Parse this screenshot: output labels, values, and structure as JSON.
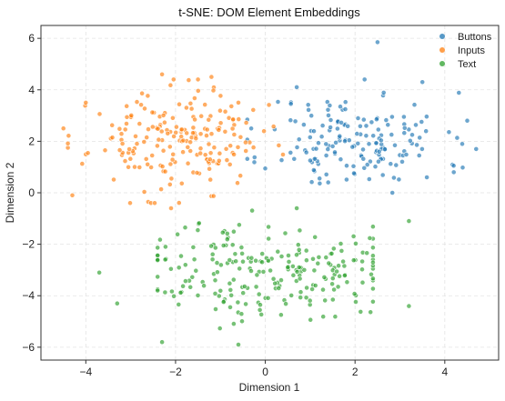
{
  "chart_data": {
    "type": "scatter",
    "title": "t-SNE: DOM Element Embeddings",
    "xlabel": "Dimension 1",
    "ylabel": "Dimension 2",
    "xlim": [
      -5,
      5.2
    ],
    "ylim": [
      -6.5,
      6.5
    ],
    "xticks": [
      -4,
      -2,
      0,
      2,
      4
    ],
    "yticks": [
      -6,
      -4,
      -2,
      0,
      2,
      4,
      6
    ],
    "grid": true,
    "legend_position": "top-right",
    "series": [
      {
        "name": "Buttons",
        "color": "#1f77b4",
        "center": [
          2.0,
          2.0
        ],
        "spread": [
          1.0,
          0.95
        ],
        "count": 170,
        "seed": 11,
        "extra_points": [
          [
            2.5,
            5.85
          ],
          [
            3.5,
            4.3
          ],
          [
            4.5,
            2.8
          ],
          [
            4.7,
            1.7
          ],
          [
            4.2,
            0.8
          ],
          [
            3.6,
            0.6
          ],
          [
            0.7,
            4.1
          ]
        ]
      },
      {
        "name": "Inputs",
        "color": "#ff7f0e",
        "center": [
          -2.0,
          2.0
        ],
        "spread": [
          0.95,
          0.95
        ],
        "count": 200,
        "seed": 23,
        "extra_points": [
          [
            -2.3,
            4.6
          ],
          [
            -4.5,
            2.5
          ],
          [
            -4.3,
            -0.1
          ],
          [
            -4.0,
            3.5
          ],
          [
            -1.2,
            4.5
          ],
          [
            -0.6,
            3.5
          ],
          [
            -2.1,
            -0.6
          ]
        ]
      },
      {
        "name": "Text",
        "color": "#2ca02c",
        "center": [
          0.0,
          -3.0
        ],
        "spread": [
          1.35,
          0.95
        ],
        "count": 230,
        "seed": 37,
        "extra_points": [
          [
            -2.3,
            -5.8
          ],
          [
            -0.6,
            -5.9
          ],
          [
            -3.7,
            -3.1
          ],
          [
            -3.3,
            -4.3
          ],
          [
            3.2,
            -4.4
          ],
          [
            3.2,
            -1.1
          ],
          [
            0.7,
            -0.6
          ]
        ]
      }
    ]
  }
}
